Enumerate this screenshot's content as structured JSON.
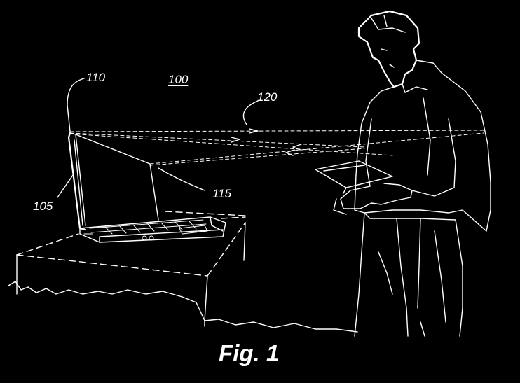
{
  "figure": {
    "caption": "Fig. 1",
    "background_color": "#000000",
    "line_color": "#ffffff",
    "reference_numerals": {
      "system": "100",
      "laptop": "105",
      "camera": "110",
      "screen": "115",
      "light_path": "120"
    },
    "depicted_elements": [
      "laptop-icon",
      "table-icon",
      "person-icon",
      "document-icon",
      "light-ray-icon"
    ]
  }
}
